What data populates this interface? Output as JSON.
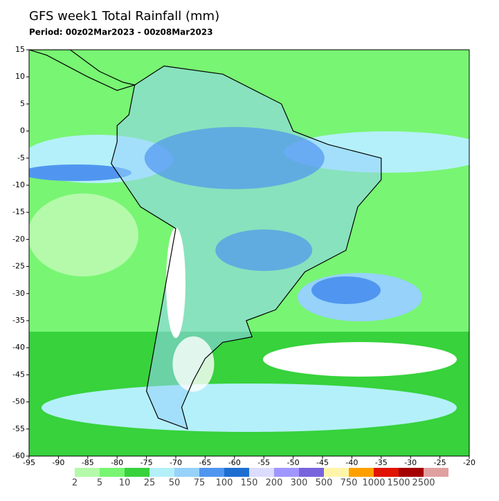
{
  "map": {
    "title": "GFS week1 Total Rainfall (mm)",
    "period": "Period: 00z02Mar2023 - 00z08Mar2023",
    "xlim": [
      -95,
      -20
    ],
    "ylim": [
      -60,
      15
    ],
    "xticks": [
      -95,
      -90,
      -85,
      -80,
      -75,
      -70,
      -65,
      -60,
      -55,
      -50,
      -45,
      -40,
      -35,
      -30,
      -25,
      -20
    ],
    "yticks": [
      15,
      10,
      5,
      0,
      -5,
      -10,
      -15,
      -20,
      -25,
      -30,
      -35,
      -40,
      -45,
      -50,
      -55,
      -60
    ],
    "legend": {
      "labels": [
        2,
        5,
        10,
        25,
        50,
        75,
        100,
        150,
        200,
        300,
        500,
        750,
        1000,
        1500,
        2500
      ],
      "colors": [
        "#b4faaa",
        "#78f573",
        "#37d23c",
        "#b4f0fa",
        "#96d2fa",
        "#5096f0",
        "#1e6ed2",
        "#dcdcff",
        "#a096ff",
        "#7864dc",
        "#fff5aa",
        "#ffa000",
        "#e11400",
        "#a50000",
        "#e1a0a0"
      ]
    }
  }
}
